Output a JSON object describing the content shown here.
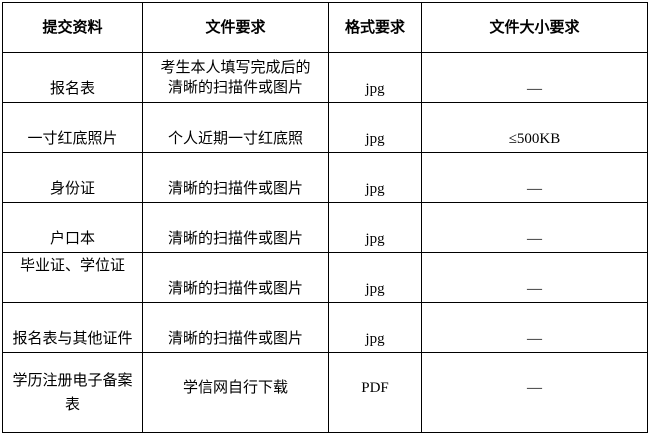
{
  "headers": [
    "提交资料",
    "文件要求",
    "格式要求",
    "文件大小要求"
  ],
  "rows": [
    {
      "material": "报名表",
      "requirement": "考生本人填写完成后的清晰的扫描件或图片",
      "format": "jpg",
      "size": "—"
    },
    {
      "material": "一寸红底照片",
      "requirement": "个人近期一寸红底照",
      "format": "jpg",
      "size": "≤500KB"
    },
    {
      "material": "身份证",
      "requirement": "清晰的扫描件或图片",
      "format": "jpg",
      "size": "—"
    },
    {
      "material": "户口本",
      "requirement": "清晰的扫描件或图片",
      "format": "jpg",
      "size": "—"
    },
    {
      "material": "毕业证、学位证",
      "requirement": "清晰的扫描件或图片",
      "format": "jpg",
      "size": "—"
    },
    {
      "material": "报名表与其他证件",
      "requirement": "清晰的扫描件或图片",
      "format": "jpg",
      "size": "—"
    },
    {
      "material": "学历注册电子备案表",
      "requirement": "学信网自行下载",
      "format": "PDF",
      "size": "—"
    }
  ]
}
